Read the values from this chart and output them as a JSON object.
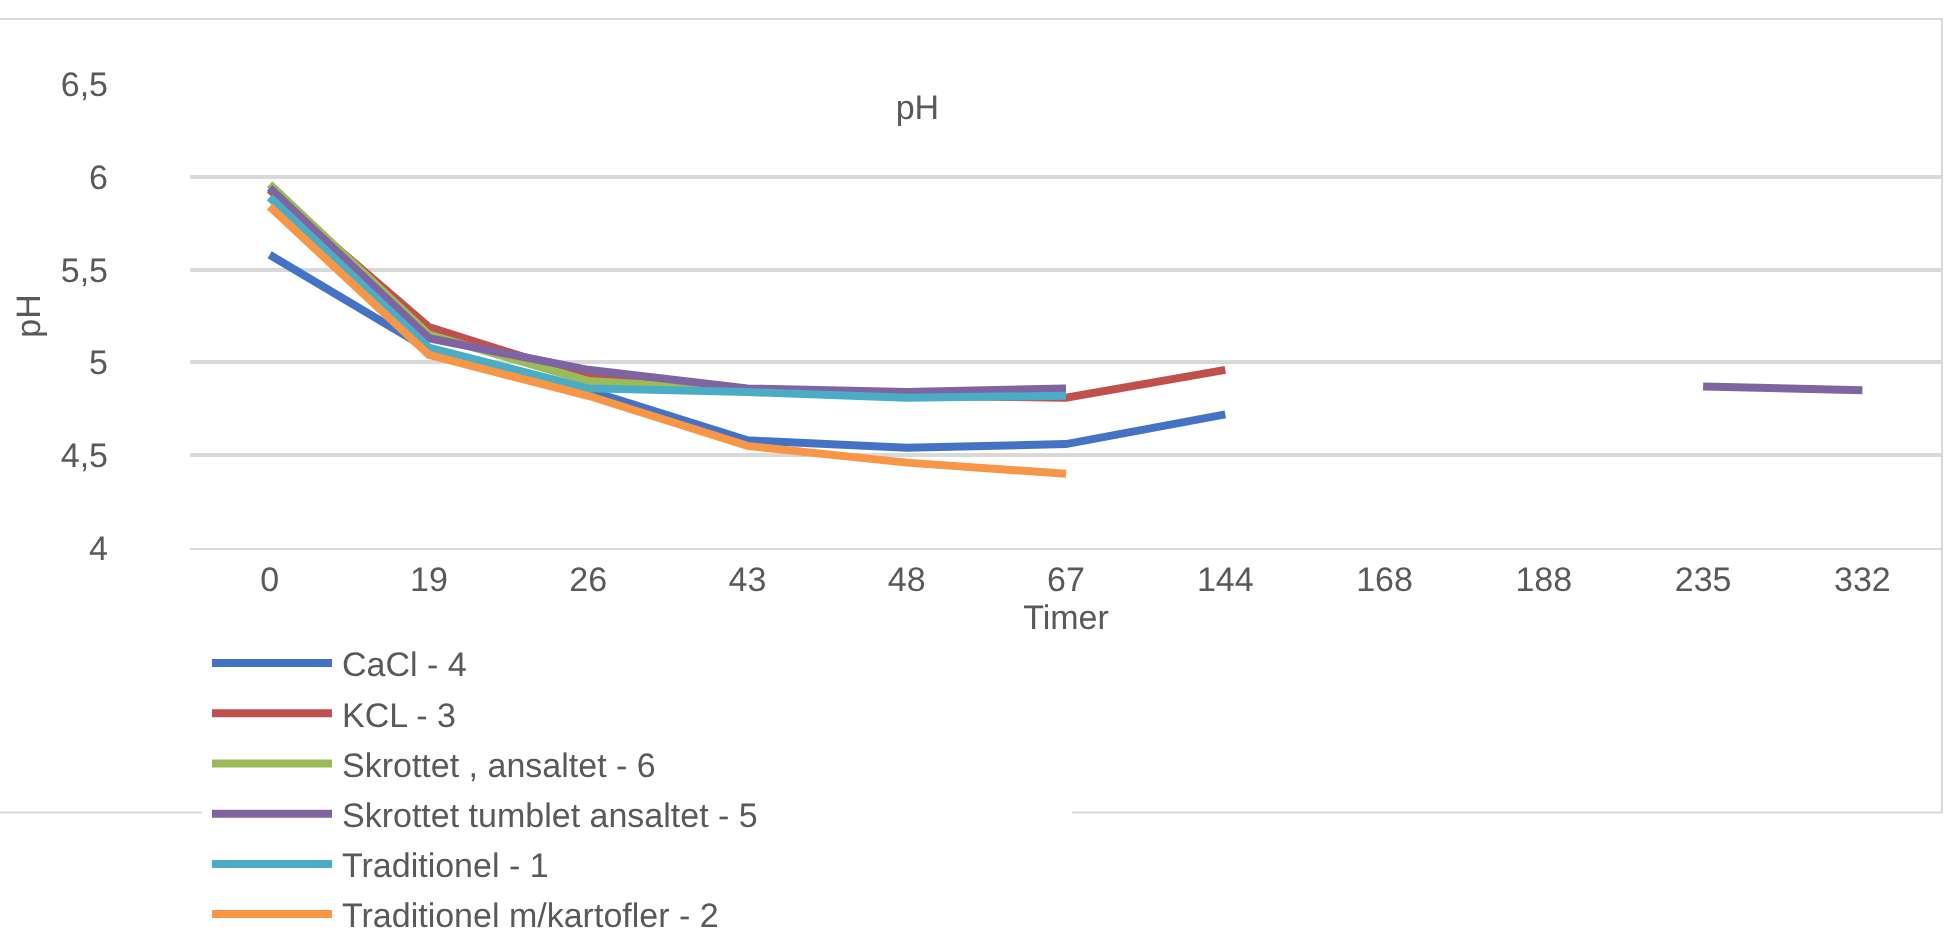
{
  "chart_data": {
    "type": "line",
    "title": "pH",
    "xlabel": "Timer",
    "ylabel": "pH",
    "categories": [
      "0",
      "19",
      "26",
      "43",
      "48",
      "67",
      "144",
      "168",
      "188",
      "235",
      "332"
    ],
    "ylim": [
      4,
      6.5
    ],
    "yticks": [
      {
        "value": 4,
        "label": "4"
      },
      {
        "value": 4.5,
        "label": "4,5"
      },
      {
        "value": 5,
        "label": "5"
      },
      {
        "value": 5.5,
        "label": "5,5"
      },
      {
        "value": 6,
        "label": "6"
      },
      {
        "value": 6.5,
        "label": "6,5"
      }
    ],
    "grid": "y",
    "legend": "bottom",
    "line_style": "solid",
    "marker": "none",
    "series": [
      {
        "name": "CaCl - 4",
        "color": "#4472c4",
        "values": [
          5.58,
          5.07,
          4.85,
          4.58,
          4.54,
          4.56,
          4.72,
          null,
          null,
          null,
          null
        ]
      },
      {
        "name": "KCL - 3",
        "color": "#c0504d",
        "values": [
          5.93,
          5.19,
          4.92,
          4.85,
          4.82,
          4.81,
          4.96,
          null,
          null,
          null,
          null
        ]
      },
      {
        "name": "Skrottet , ansaltet - 6",
        "color": "#9bbb59",
        "values": [
          5.96,
          5.15,
          4.9,
          4.85,
          4.82,
          4.83,
          null,
          null,
          null,
          null,
          null
        ]
      },
      {
        "name": "Skrottet tumblet ansaltet - 5",
        "color": "#8064a2",
        "values": [
          5.94,
          5.13,
          4.96,
          4.86,
          4.84,
          4.86,
          null,
          null,
          null,
          4.87,
          4.85
        ]
      },
      {
        "name": "Traditionel - 1",
        "color": "#4bacc6",
        "values": [
          5.89,
          5.08,
          4.86,
          4.84,
          4.81,
          4.82,
          null,
          null,
          null,
          null,
          null
        ]
      },
      {
        "name": "Traditionel m/kartofler - 2",
        "color": "#f79646",
        "values": [
          5.84,
          5.04,
          4.82,
          4.55,
          4.46,
          4.4,
          null,
          null,
          null,
          null,
          null
        ]
      }
    ]
  }
}
